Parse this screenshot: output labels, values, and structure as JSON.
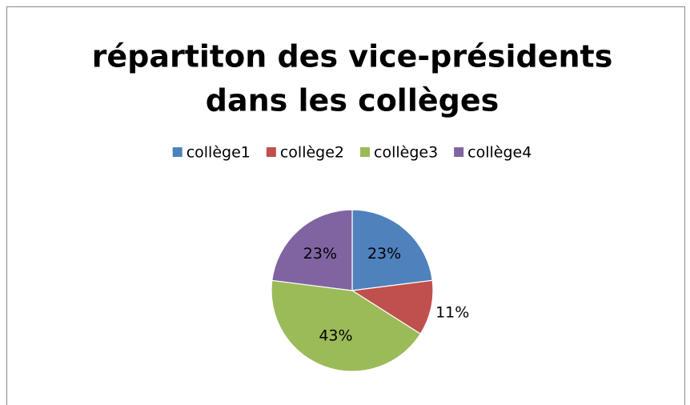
{
  "chart_data": {
    "type": "pie",
    "title": [
      "répartiton des vice-présidents",
      "dans les collèges"
    ],
    "categories": [
      "collège1",
      "collège2",
      "collège3",
      "collège4"
    ],
    "values": [
      23,
      11,
      43,
      23
    ],
    "value_labels": [
      "23%",
      "11%",
      "43%",
      "23%"
    ],
    "colors": [
      "#4f81bd",
      "#c0504d",
      "#9bbb59",
      "#8064a2"
    ],
    "legend": "top"
  }
}
